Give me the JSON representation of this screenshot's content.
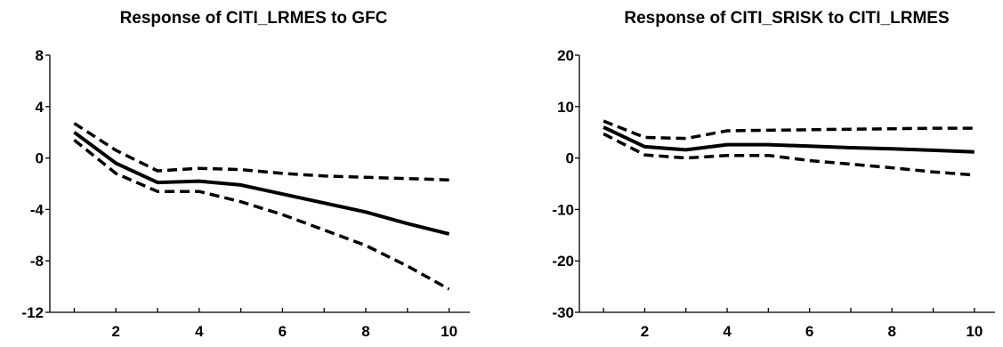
{
  "chart_data": [
    {
      "type": "line",
      "title": "Response of CITI_LRMES to GFC",
      "x": [
        1,
        2,
        3,
        4,
        5,
        6,
        7,
        8,
        9,
        10
      ],
      "xticks": [
        2,
        4,
        6,
        8,
        10
      ],
      "xlim": [
        0.5,
        10.5
      ],
      "ylim": [
        -12,
        8
      ],
      "yticks": [
        8,
        4,
        0,
        -4,
        -8,
        -12
      ],
      "ytick_labels": [
        "8",
        "4",
        "0",
        "-4",
        "-8",
        "-12"
      ],
      "series": [
        {
          "style": "solid",
          "values": [
            2.0,
            -0.4,
            -1.9,
            -1.8,
            -2.1,
            -2.8,
            -3.5,
            -4.2,
            -5.1,
            -5.9
          ]
        },
        {
          "style": "dashed",
          "values": [
            2.7,
            0.6,
            -1.0,
            -0.8,
            -0.9,
            -1.2,
            -1.4,
            -1.5,
            -1.6,
            -1.7
          ]
        },
        {
          "style": "dashed",
          "values": [
            1.4,
            -1.2,
            -2.6,
            -2.6,
            -3.4,
            -4.4,
            -5.6,
            -6.8,
            -8.4,
            -10.2
          ]
        }
      ]
    },
    {
      "type": "line",
      "title": "Response of CITI_SRISK to CITI_LRMES",
      "x": [
        1,
        2,
        3,
        4,
        5,
        6,
        7,
        8,
        9,
        10
      ],
      "xticks": [
        2,
        4,
        6,
        8,
        10
      ],
      "xlim": [
        0.5,
        10.5
      ],
      "ylim": [
        -30,
        20
      ],
      "yticks": [
        20,
        10,
        0,
        -10,
        -20,
        -30
      ],
      "ytick_labels": [
        "20",
        "10",
        "0",
        "-10",
        "-20",
        "-30"
      ],
      "series": [
        {
          "style": "solid",
          "values": [
            6.0,
            2.2,
            1.6,
            2.6,
            2.6,
            2.3,
            2.0,
            1.8,
            1.5,
            1.2
          ]
        },
        {
          "style": "dashed",
          "values": [
            7.2,
            4.0,
            3.8,
            5.3,
            5.4,
            5.5,
            5.6,
            5.7,
            5.8,
            5.8
          ]
        },
        {
          "style": "dashed",
          "values": [
            4.7,
            0.6,
            0.0,
            0.5,
            0.5,
            -0.5,
            -1.2,
            -1.9,
            -2.7,
            -3.3
          ]
        }
      ]
    }
  ]
}
